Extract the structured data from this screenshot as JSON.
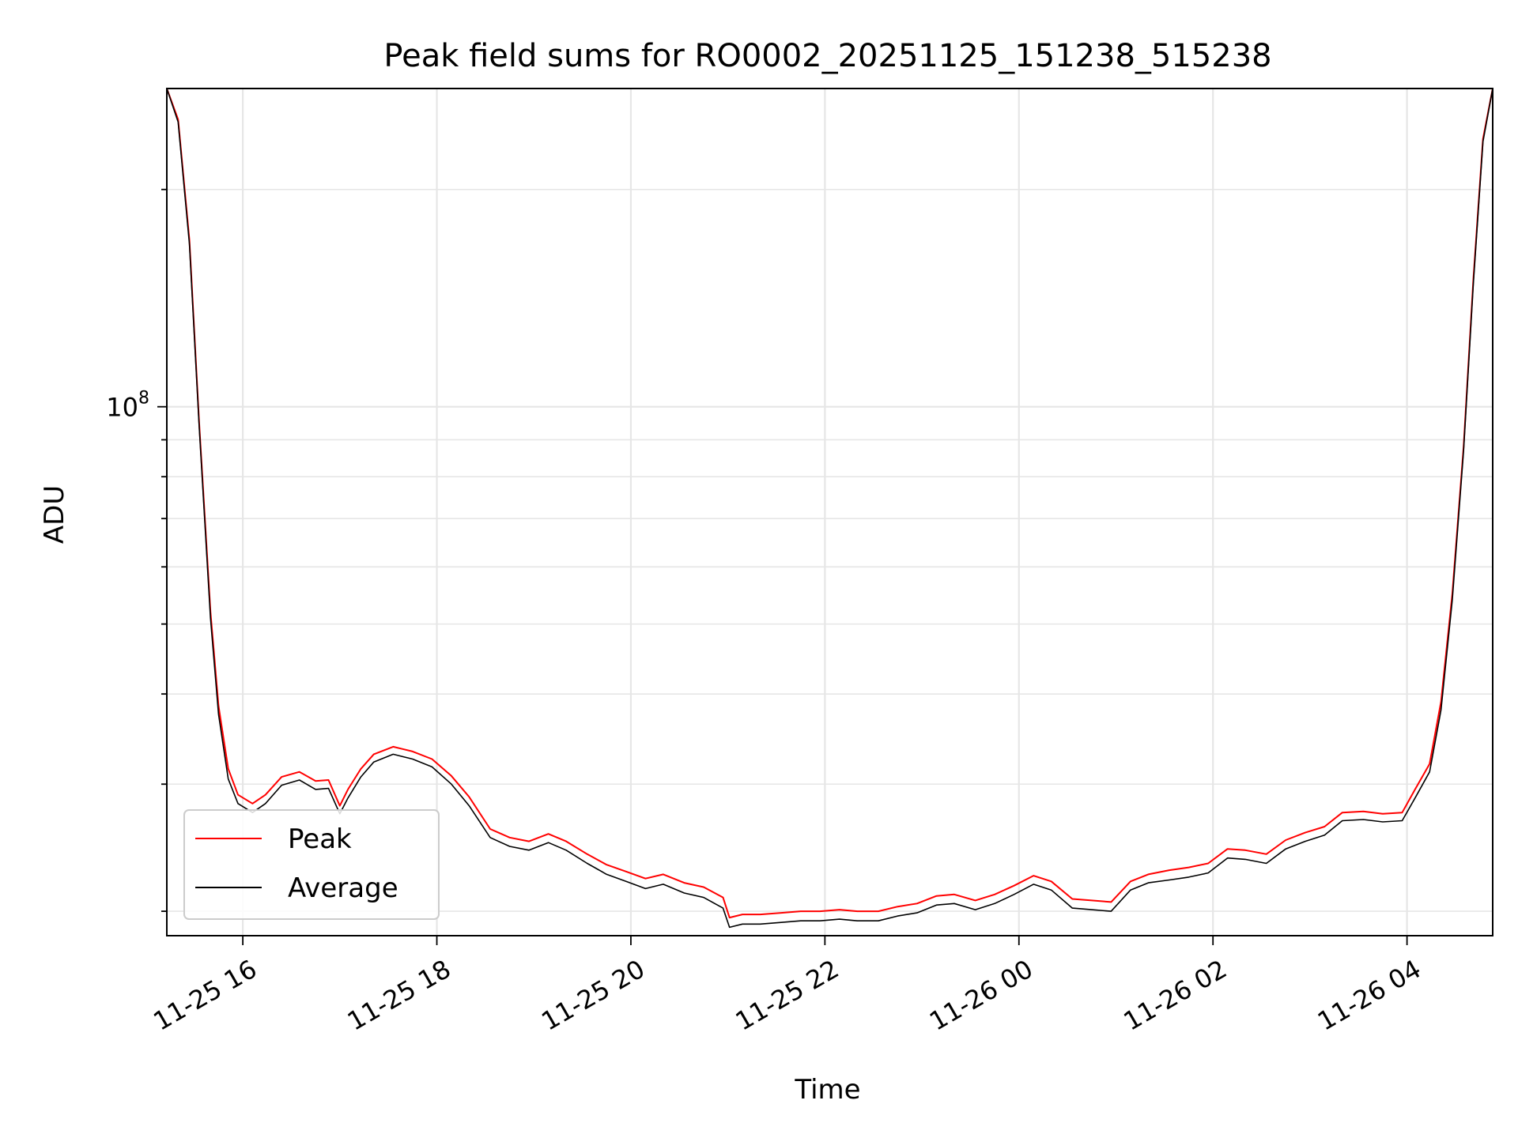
{
  "chart_data": {
    "type": "line",
    "title": "Peak field sums for RO0002_20251125_151238_515238",
    "xlabel": "Time",
    "ylabel": "ADU",
    "yscale": "log",
    "ylim": [
      18500000,
      276000000
    ],
    "xlim": [
      "2025-11-25 15:13",
      "2025-11-26 04:53"
    ],
    "grid": true,
    "legend_position": "lower-left",
    "x_ticks": [
      {
        "value": "2025-11-25 16:00",
        "label": "11-25 16"
      },
      {
        "value": "2025-11-25 18:00",
        "label": "11-25 18"
      },
      {
        "value": "2025-11-25 20:00",
        "label": "11-25 20"
      },
      {
        "value": "2025-11-25 22:00",
        "label": "11-25 22"
      },
      {
        "value": "2025-11-26 00:00",
        "label": "11-26 00"
      },
      {
        "value": "2025-11-26 02:00",
        "label": "11-26 02"
      },
      {
        "value": "2025-11-26 04:00",
        "label": "11-26 04"
      }
    ],
    "y_ticks": [
      {
        "value": 100000000,
        "label": "10",
        "exponent": "8"
      }
    ],
    "series": [
      {
        "name": "Peak",
        "color": "#ff0000",
        "x": [
          "2025-11-25 15:13",
          "2025-11-25 15:20",
          "2025-11-25 15:27",
          "2025-11-25 15:33",
          "2025-11-25 15:40",
          "2025-11-25 15:45",
          "2025-11-25 15:51",
          "2025-11-25 15:57",
          "2025-11-25 16:06",
          "2025-11-25 16:14",
          "2025-11-25 16:24",
          "2025-11-25 16:35",
          "2025-11-25 16:45",
          "2025-11-25 16:53",
          "2025-11-25 17:00",
          "2025-11-25 17:05",
          "2025-11-25 17:13",
          "2025-11-25 17:21",
          "2025-11-25 17:33",
          "2025-11-25 17:45",
          "2025-11-25 17:57",
          "2025-11-25 18:09",
          "2025-11-25 18:20",
          "2025-11-25 18:33",
          "2025-11-25 18:45",
          "2025-11-25 18:57",
          "2025-11-25 19:09",
          "2025-11-25 19:20",
          "2025-11-25 19:33",
          "2025-11-25 19:45",
          "2025-11-25 19:57",
          "2025-11-25 20:09",
          "2025-11-25 20:20",
          "2025-11-25 20:33",
          "2025-11-25 20:45",
          "2025-11-25 20:57",
          "2025-11-25 21:01",
          "2025-11-25 21:09",
          "2025-11-25 21:20",
          "2025-11-25 21:33",
          "2025-11-25 21:45",
          "2025-11-25 21:57",
          "2025-11-25 22:09",
          "2025-11-25 22:20",
          "2025-11-25 22:33",
          "2025-11-25 22:45",
          "2025-11-25 22:57",
          "2025-11-25 23:09",
          "2025-11-25 23:20",
          "2025-11-25 23:33",
          "2025-11-25 23:45",
          "2025-11-25 23:57",
          "2025-11-26 00:09",
          "2025-11-26 00:20",
          "2025-11-26 00:33",
          "2025-11-26 00:45",
          "2025-11-26 00:57",
          "2025-11-26 01:09",
          "2025-11-26 01:20",
          "2025-11-26 01:33",
          "2025-11-26 01:45",
          "2025-11-26 01:57",
          "2025-11-26 02:09",
          "2025-11-26 02:20",
          "2025-11-26 02:33",
          "2025-11-26 02:45",
          "2025-11-26 02:57",
          "2025-11-26 03:09",
          "2025-11-26 03:20",
          "2025-11-26 03:33",
          "2025-11-26 03:45",
          "2025-11-26 03:57",
          "2025-11-26 04:05",
          "2025-11-26 04:14",
          "2025-11-26 04:21",
          "2025-11-26 04:28",
          "2025-11-26 04:35",
          "2025-11-26 04:41",
          "2025-11-26 04:47",
          "2025-11-26 04:53"
        ],
        "y": [
          276000000,
          250000000,
          170000000,
          95000000,
          52000000,
          38500000,
          31500000,
          29000000,
          28200000,
          29000000,
          30700000,
          31200000,
          30300000,
          30400000,
          28000000,
          29500000,
          31500000,
          33000000,
          33800000,
          33300000,
          32500000,
          30800000,
          28800000,
          26000000,
          25300000,
          25000000,
          25600000,
          25000000,
          24000000,
          23200000,
          22700000,
          22200000,
          22500000,
          21900000,
          21600000,
          20900000,
          19600000,
          19800000,
          19800000,
          19900000,
          20000000,
          20000000,
          20100000,
          20000000,
          20000000,
          20300000,
          20500000,
          21000000,
          21100000,
          20700000,
          21100000,
          21700000,
          22400000,
          22000000,
          20800000,
          20700000,
          20600000,
          22000000,
          22500000,
          22800000,
          23000000,
          23300000,
          24400000,
          24300000,
          24000000,
          25100000,
          25700000,
          26200000,
          27400000,
          27500000,
          27300000,
          27400000,
          29500000,
          32000000,
          39000000,
          55000000,
          88000000,
          150000000,
          235000000,
          276000000
        ]
      },
      {
        "name": "Average",
        "color": "#000000",
        "x": [
          "2025-11-25 15:13",
          "2025-11-25 15:20",
          "2025-11-25 15:27",
          "2025-11-25 15:33",
          "2025-11-25 15:40",
          "2025-11-25 15:45",
          "2025-11-25 15:51",
          "2025-11-25 15:57",
          "2025-11-25 16:06",
          "2025-11-25 16:14",
          "2025-11-25 16:24",
          "2025-11-25 16:35",
          "2025-11-25 16:45",
          "2025-11-25 16:53",
          "2025-11-25 17:00",
          "2025-11-25 17:05",
          "2025-11-25 17:13",
          "2025-11-25 17:21",
          "2025-11-25 17:33",
          "2025-11-25 17:45",
          "2025-11-25 17:57",
          "2025-11-25 18:09",
          "2025-11-25 18:20",
          "2025-11-25 18:33",
          "2025-11-25 18:45",
          "2025-11-25 18:57",
          "2025-11-25 19:09",
          "2025-11-25 19:20",
          "2025-11-25 19:33",
          "2025-11-25 19:45",
          "2025-11-25 19:57",
          "2025-11-25 20:09",
          "2025-11-25 20:20",
          "2025-11-25 20:33",
          "2025-11-25 20:45",
          "2025-11-25 20:57",
          "2025-11-25 21:01",
          "2025-11-25 21:09",
          "2025-11-25 21:20",
          "2025-11-25 21:33",
          "2025-11-25 21:45",
          "2025-11-25 21:57",
          "2025-11-25 22:09",
          "2025-11-25 22:20",
          "2025-11-25 22:33",
          "2025-11-25 22:45",
          "2025-11-25 22:57",
          "2025-11-25 23:09",
          "2025-11-25 23:20",
          "2025-11-25 23:33",
          "2025-11-25 23:45",
          "2025-11-25 23:57",
          "2025-11-26 00:09",
          "2025-11-26 00:20",
          "2025-11-26 00:33",
          "2025-11-26 00:45",
          "2025-11-26 00:57",
          "2025-11-26 01:09",
          "2025-11-26 01:20",
          "2025-11-26 01:33",
          "2025-11-26 01:45",
          "2025-11-26 01:57",
          "2025-11-26 02:09",
          "2025-11-26 02:20",
          "2025-11-26 02:33",
          "2025-11-26 02:45",
          "2025-11-26 02:57",
          "2025-11-26 03:09",
          "2025-11-26 03:20",
          "2025-11-26 03:33",
          "2025-11-26 03:45",
          "2025-11-26 03:57",
          "2025-11-26 04:05",
          "2025-11-26 04:14",
          "2025-11-26 04:21",
          "2025-11-26 04:28",
          "2025-11-26 04:35",
          "2025-11-26 04:41",
          "2025-11-26 04:47",
          "2025-11-26 04:53"
        ],
        "y": [
          276000000,
          248000000,
          168000000,
          94000000,
          51000000,
          37500000,
          30500000,
          28200000,
          27400000,
          28200000,
          29900000,
          30400000,
          29500000,
          29600000,
          27300000,
          28700000,
          30700000,
          32200000,
          33000000,
          32500000,
          31700000,
          30000000,
          28000000,
          25300000,
          24600000,
          24300000,
          24900000,
          24300000,
          23300000,
          22500000,
          22000000,
          21500000,
          21800000,
          21200000,
          20900000,
          20200000,
          19000000,
          19200000,
          19200000,
          19300000,
          19400000,
          19400000,
          19500000,
          19400000,
          19400000,
          19700000,
          19900000,
          20400000,
          20500000,
          20100000,
          20500000,
          21100000,
          21800000,
          21400000,
          20200000,
          20100000,
          20000000,
          21400000,
          21900000,
          22100000,
          22300000,
          22600000,
          23700000,
          23600000,
          23300000,
          24400000,
          25000000,
          25500000,
          26700000,
          26800000,
          26600000,
          26700000,
          28700000,
          31200000,
          38000000,
          54000000,
          87000000,
          148000000,
          233000000,
          276000000
        ]
      }
    ]
  }
}
